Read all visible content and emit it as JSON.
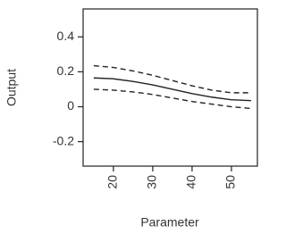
{
  "chart_data": {
    "type": "line",
    "x_label": "Parameter",
    "y_label": "Output",
    "x": [
      15,
      20,
      25,
      30,
      35,
      40,
      45,
      50,
      55
    ],
    "series": [
      {
        "color": "#222222",
        "dash": false,
        "values": [
          0.165,
          0.16,
          0.145,
          0.125,
          0.1,
          0.075,
          0.055,
          0.04,
          0.035
        ]
      },
      {
        "color": "#222222",
        "dash": true,
        "values": [
          0.235,
          0.225,
          0.205,
          0.18,
          0.15,
          0.12,
          0.095,
          0.08,
          0.08
        ]
      },
      {
        "color": "#222222",
        "dash": true,
        "values": [
          0.1,
          0.095,
          0.085,
          0.07,
          0.05,
          0.03,
          0.015,
          0.0,
          -0.01
        ]
      }
    ],
    "xlim": [
      12.3,
      56.6
    ],
    "xticks": [
      20,
      30,
      40,
      50
    ],
    "ylim": [
      -0.34,
      0.56
    ],
    "yticks": [
      -0.2,
      0,
      0.2,
      0.4
    ]
  }
}
